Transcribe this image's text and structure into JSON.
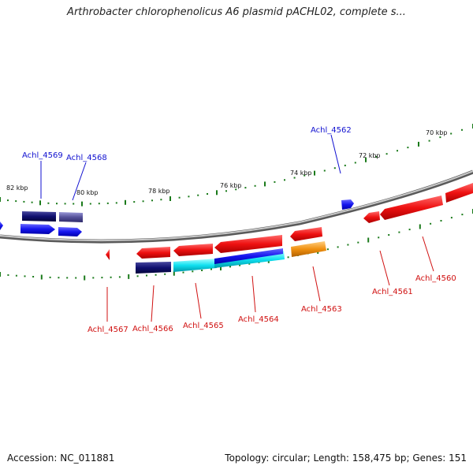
{
  "title": "Arthrobacter chlorophenolicus A6 plasmid pACHL02, complete s...",
  "accession": "Accession: NC_011881",
  "summary": "Topology: circular; Length: 158,475 bp; Genes: 151",
  "colors": {
    "backbone": "#8a8a8a",
    "tick": "#1a7a1a",
    "forward_gene": "#ee1111",
    "reverse_gene": "#1515ee",
    "dark_gene": "#101070",
    "cyan_gene": "#10e0f0",
    "orange_gene": "#f09010",
    "label_top": "#1010d0",
    "label_bottom": "#d01010"
  },
  "kbp_labels": [
    "82 kbp",
    "80 kbp",
    "78 kbp",
    "76 kbp",
    "74 kbp",
    "72 kbp",
    "70 kbp"
  ],
  "gene_labels_top": [
    "Achl_4569",
    "Achl_4568",
    "Achl_4562"
  ],
  "gene_labels_bottom": [
    "Achl_4567",
    "Achl_4566",
    "Achl_4565",
    "Achl_4564",
    "Achl_4563",
    "Achl_4561",
    "Achl_4560"
  ]
}
